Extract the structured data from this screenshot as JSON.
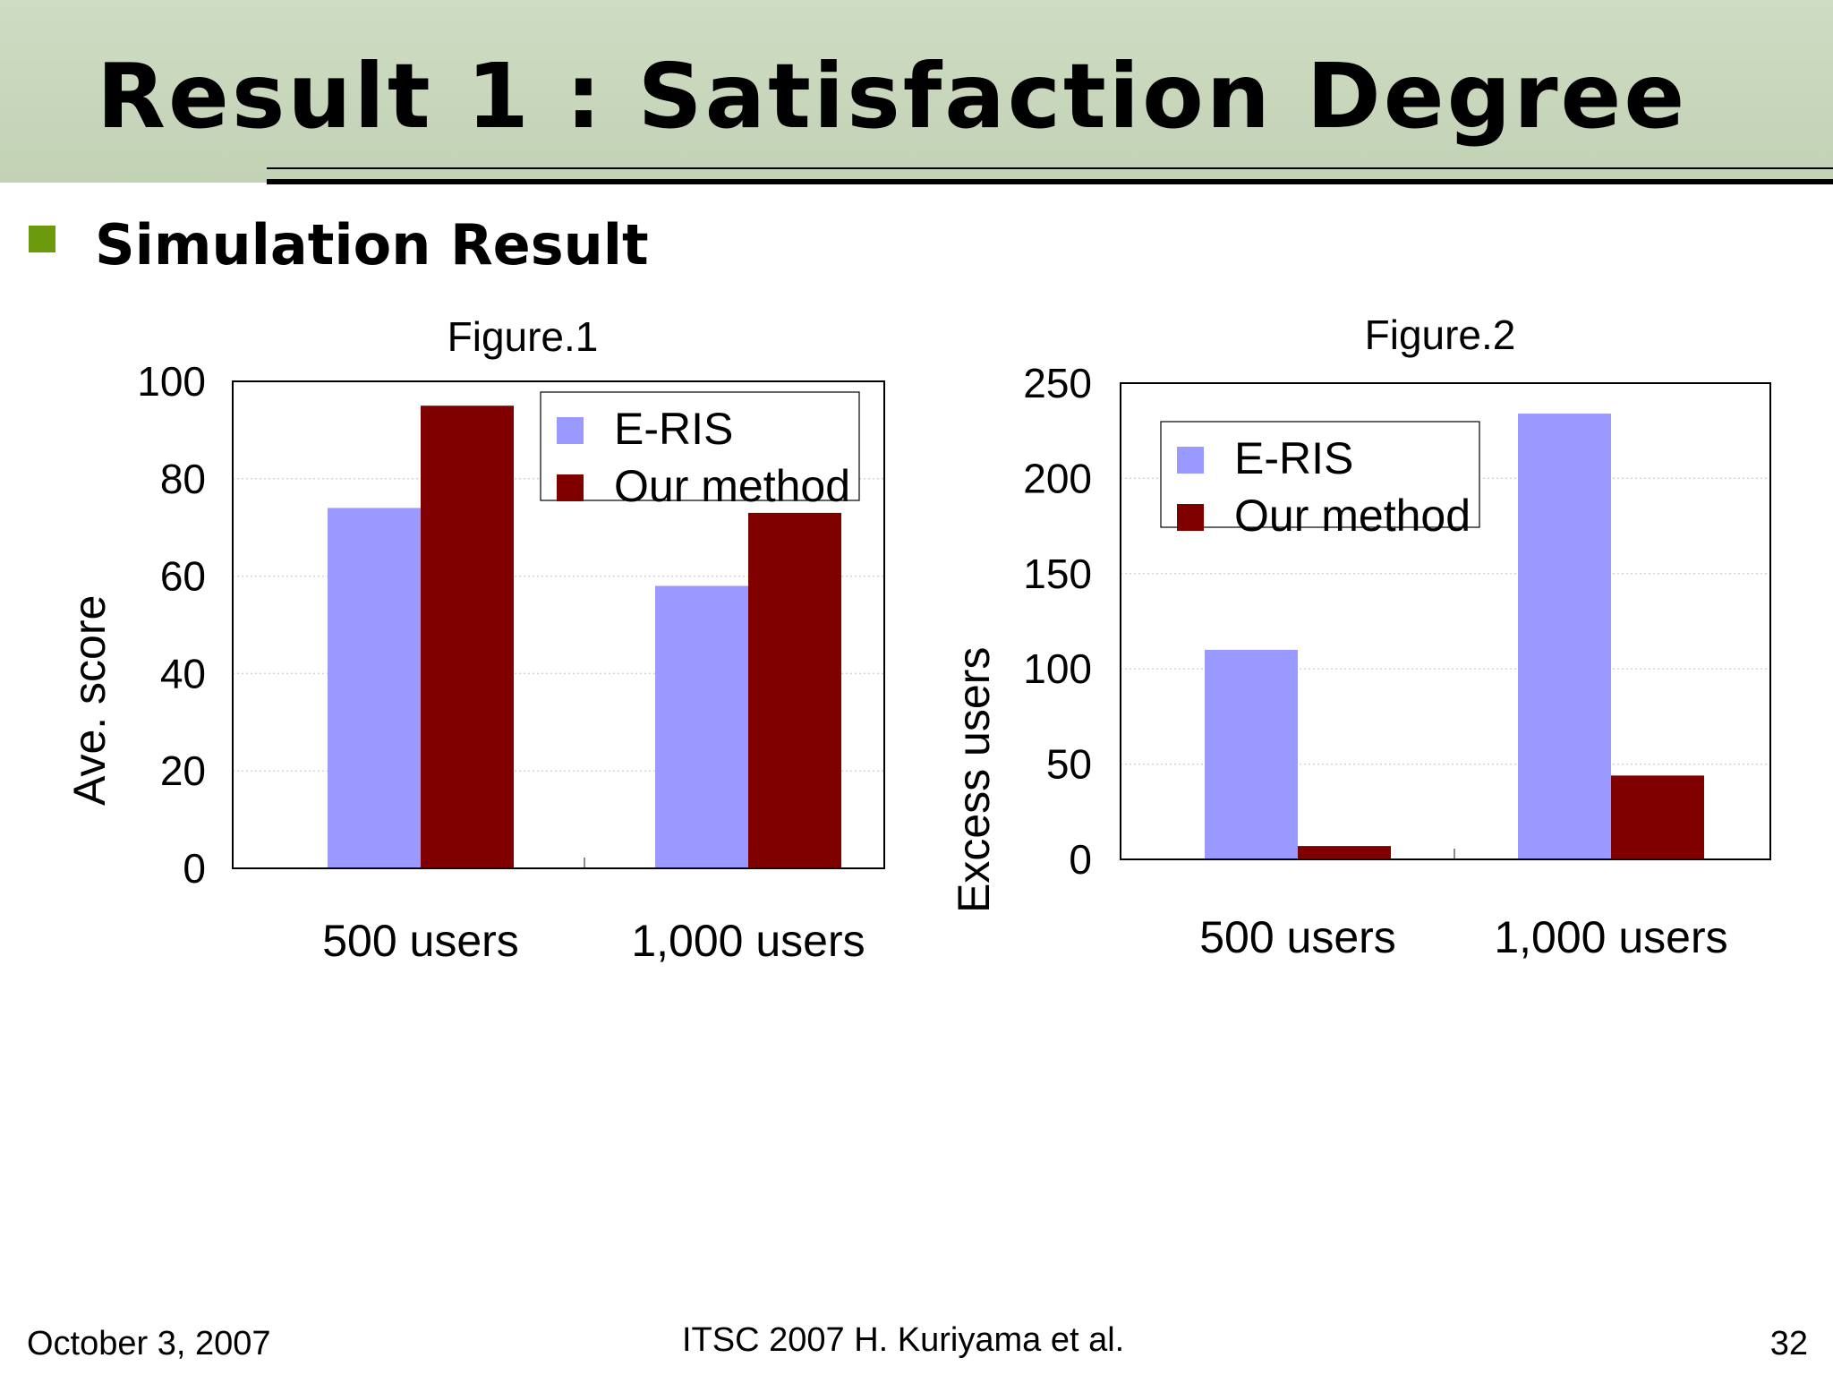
{
  "slide": {
    "title": "Result 1 : Satisfaction Degree",
    "bullet": "Simulation Result",
    "accent_color": "#6b9a0c",
    "footer": {
      "date": "October 3, 2007",
      "credit": "ITSC 2007 H. Kuriyama et al.",
      "page": "32"
    }
  },
  "chart_data": [
    {
      "type": "bar",
      "title": "Figure.1",
      "ylabel": "Ave. score",
      "categories": [
        "500  users",
        "1,000 users"
      ],
      "series": [
        {
          "name": "E-RIS",
          "values": [
            74,
            58
          ],
          "color": "#9999ff"
        },
        {
          "name": "Our method",
          "values": [
            95,
            73
          ],
          "color": "#800000"
        }
      ],
      "ylim": [
        0,
        100
      ],
      "yticks": [
        "0",
        "20",
        "40",
        "60",
        "80",
        "100"
      ],
      "grid": true,
      "legend": "top-right"
    },
    {
      "type": "bar",
      "title": "Figure.2",
      "ylabel": "Excess users",
      "categories": [
        "500 users",
        "1,000 users"
      ],
      "series": [
        {
          "name": "E-RIS",
          "values": [
            110,
            234
          ],
          "color": "#9999ff"
        },
        {
          "name": "Our method",
          "values": [
            7,
            44
          ],
          "color": "#800000"
        }
      ],
      "ylim": [
        0,
        250
      ],
      "yticks": [
        "0",
        "50",
        "100",
        "150",
        "200",
        "250"
      ],
      "grid": true,
      "legend": "top-left"
    }
  ]
}
